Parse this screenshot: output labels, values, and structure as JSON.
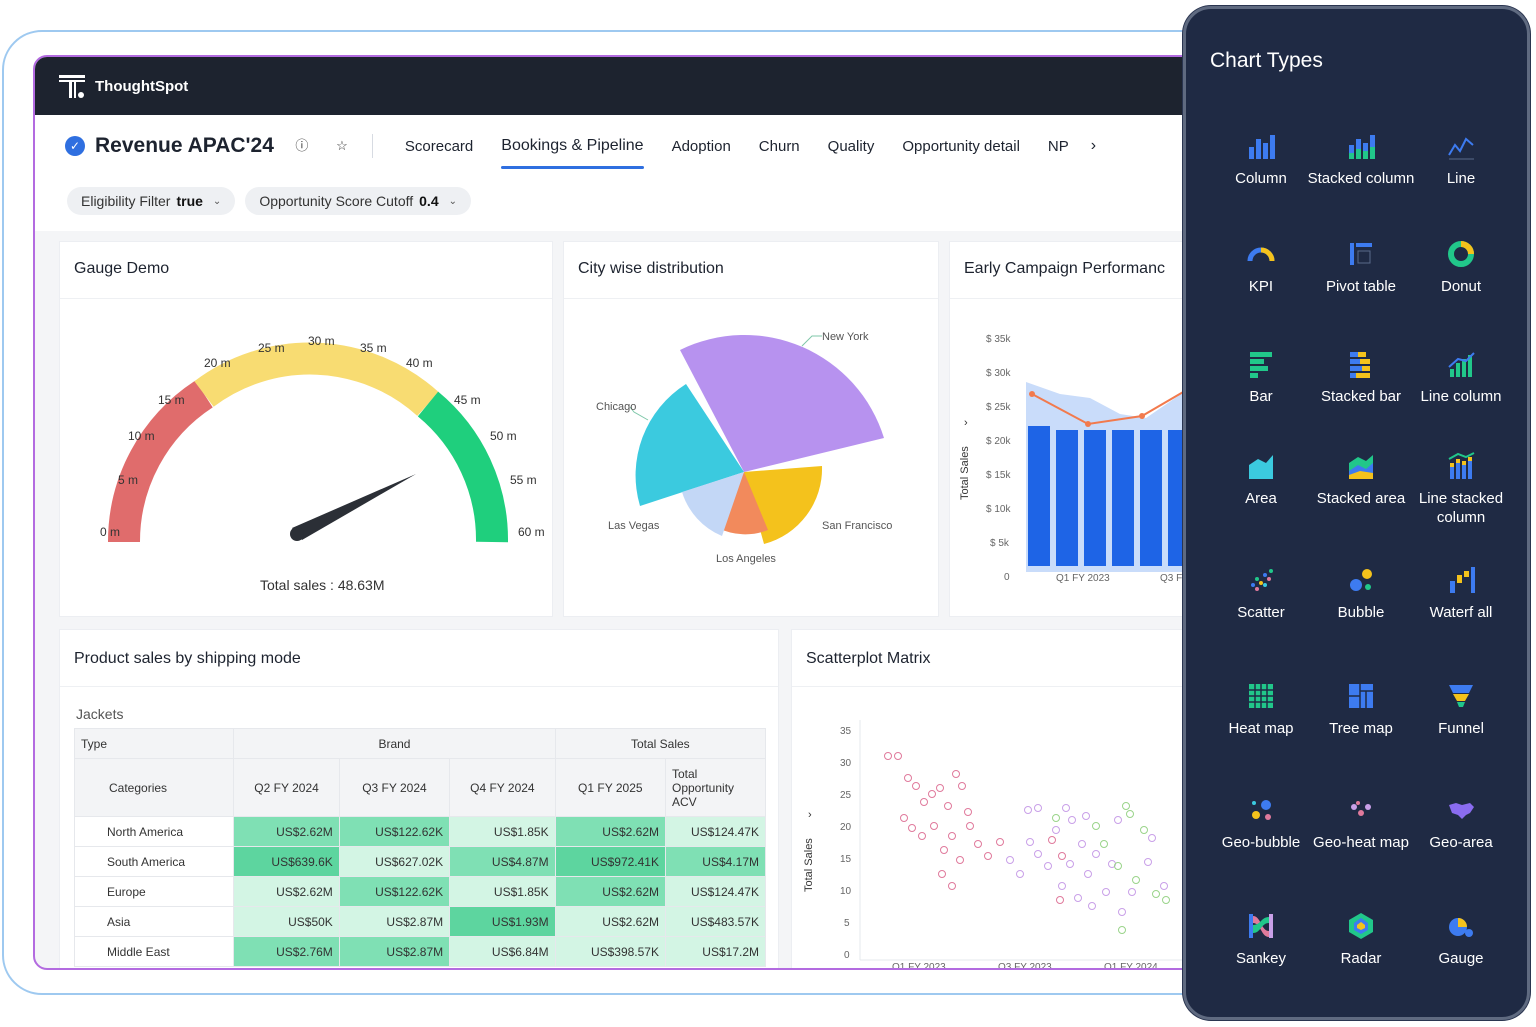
{
  "app": {
    "brand": "ThoughtSpot"
  },
  "header": {
    "title": "Revenue APAC'24",
    "tabs": [
      "Scorecard",
      "Bookings & Pipeline",
      "Adoption",
      "Churn",
      "Quality",
      "Opportunity detail",
      "NP"
    ],
    "active_tab": "Bookings & Pipeline",
    "more": "›"
  },
  "filters": [
    {
      "label": "Eligibility Filter",
      "value": "true"
    },
    {
      "label": "Opportunity Score Cutoff",
      "value": "0.4"
    }
  ],
  "gauge": {
    "title": "Gauge Demo",
    "ticks": [
      "0 m",
      "5 m",
      "10 m",
      "15 m",
      "20 m",
      "25 m",
      "30 m",
      "35 m",
      "40 m",
      "45 m",
      "50 m",
      "55 m",
      "60 m"
    ],
    "total_label": "Total sales : 48.63M",
    "value": 48.63,
    "max": 60,
    "colors": {
      "low": "#e06c6c",
      "mid": "#f8dc72",
      "high": "#1fcf7d"
    }
  },
  "city": {
    "title": "City wise distribution",
    "labels": [
      "New York",
      "Chicago",
      "Las Vegas",
      "San Francisco",
      "Los Angeles"
    ]
  },
  "campaign": {
    "title": "Early Campaign Performanc",
    "ylabel": "Total Sales",
    "yticks": [
      "$ 35k",
      "$ 30k",
      "$ 25k",
      "$ 20k",
      "$ 15k",
      "$ 10k",
      "$ 5k",
      "0"
    ],
    "xticks": [
      "Q1 FY 2023",
      "Q3 F"
    ]
  },
  "product": {
    "title": "Product sales by shipping mode",
    "subtitle": "Jackets",
    "type_label": "Type",
    "brand_label": "Brand",
    "total_sales_label": "Total Sales",
    "categories_label": "Categories",
    "columns": [
      "Q2 FY 2024",
      "Q3 FY 2024",
      "Q4 FY 2024",
      "Q1 FY 2025",
      "Total Opportunity ACV"
    ],
    "rows": [
      {
        "name": "North America",
        "values": [
          "US$2.62M",
          "US$122.62K",
          "US$1.85K",
          "US$2.62M",
          "US$124.47K"
        ]
      },
      {
        "name": "South America",
        "values": [
          "US$639.6K",
          "US$627.02K",
          "US$4.87M",
          "US$972.41K",
          "US$4.17M"
        ]
      },
      {
        "name": "Europe",
        "values": [
          "US$2.62M",
          "US$122.62K",
          "US$1.85K",
          "US$2.62M",
          "US$124.47K"
        ]
      },
      {
        "name": "Asia",
        "values": [
          "US$50K",
          "US$2.87M",
          "US$1.93M",
          "US$2.62M",
          "US$483.57K"
        ]
      },
      {
        "name": "Middle East",
        "values": [
          "US$2.76M",
          "US$2.87M",
          "US$6.84M",
          "US$398.57K",
          "US$17.2M"
        ]
      }
    ]
  },
  "scatter": {
    "title": "Scatterplot Matrix",
    "ylabel": "Total Sales",
    "yticks": [
      "35",
      "30",
      "25",
      "20",
      "15",
      "10",
      "5",
      "0"
    ],
    "xticks": [
      "Q1 FY 2023",
      "Q3 FY 2023",
      "Q1 FY 2024"
    ]
  },
  "chart_types": {
    "title": "Chart Types",
    "items": [
      "Column",
      "Stacked column",
      "Line",
      "KPI",
      "Pivot table",
      "Donut",
      "Bar",
      "Stacked bar",
      "Line column",
      "Area",
      "Stacked area",
      "Line stacked column",
      "Scatter",
      "Bubble",
      "Waterf all",
      "Heat map",
      "Tree map",
      "Funnel",
      "Geo-bubble",
      "Geo-heat map",
      "Geo-area",
      "Sankey",
      "Radar",
      "Gauge"
    ]
  }
}
